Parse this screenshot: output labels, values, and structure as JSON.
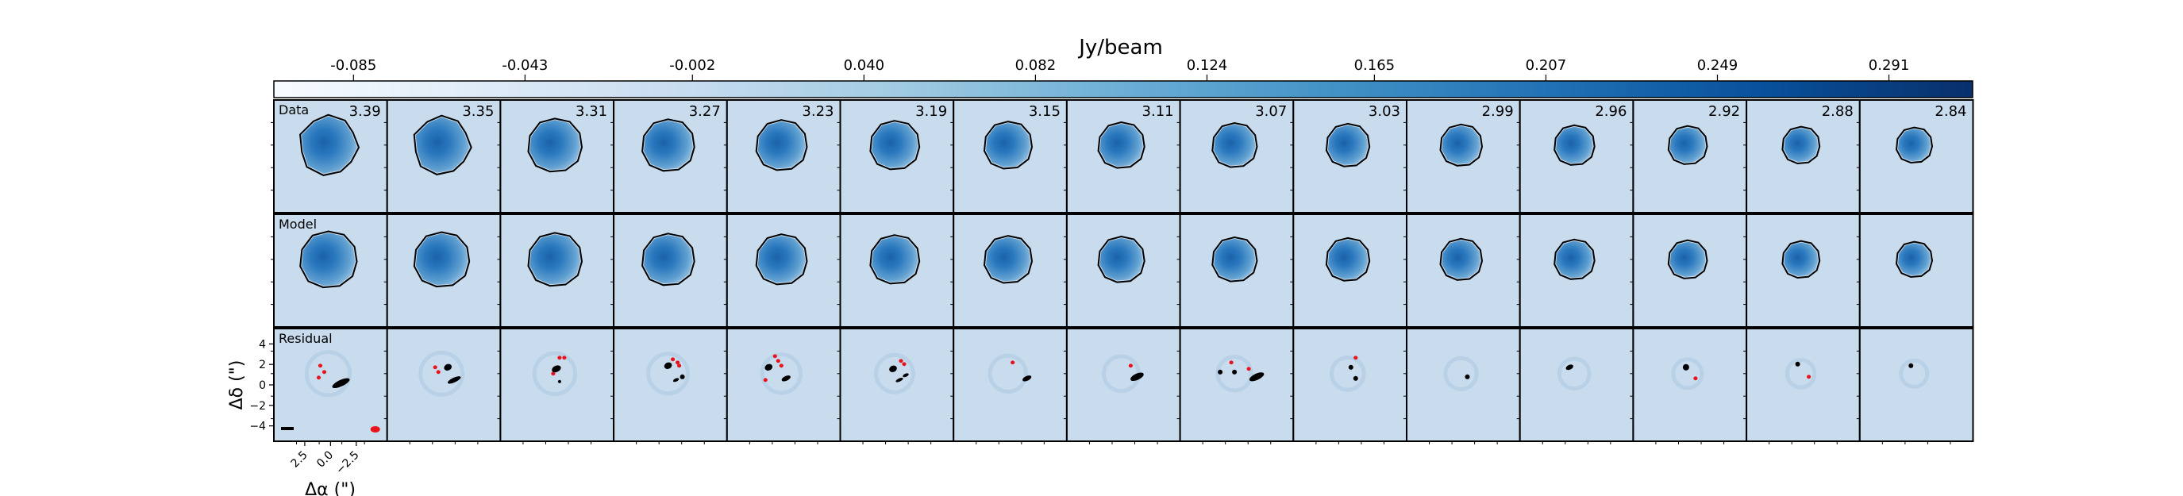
{
  "chart_data": {
    "type": "heatmap",
    "title": "",
    "colorbar": {
      "label": "Jy/beam",
      "ticks": [
        "-0.085",
        "-0.043",
        "-0.002",
        "0.040",
        "0.082",
        "0.124",
        "0.165",
        "0.207",
        "0.249",
        "0.291"
      ],
      "tick_values": [
        -0.085,
        -0.043,
        -0.002,
        0.04,
        0.082,
        0.124,
        0.165,
        0.207,
        0.249,
        0.291
      ],
      "range": [
        -0.1045,
        0.3115
      ],
      "colormap": "Blues",
      "placement": "top"
    },
    "rows": [
      "Data",
      "Model",
      "Residual"
    ],
    "channels": [
      "3.39",
      "3.35",
      "3.31",
      "3.27",
      "3.23",
      "3.19",
      "3.15",
      "3.11",
      "3.07",
      "3.03",
      "2.99",
      "2.96",
      "2.92",
      "2.88",
      "2.84"
    ],
    "xlabel": "Δα (\")",
    "ylabel": "Δδ (\")",
    "xticks": [
      "2.5",
      "0.0",
      "−2.5"
    ],
    "xtick_values": [
      2.5,
      0.0,
      -2.5
    ],
    "yticks": [
      "4",
      "2",
      "0",
      "−2",
      "−4"
    ],
    "ytick_values": [
      4,
      2,
      0,
      -2,
      -4
    ],
    "xlim": [
      5.5,
      -5.5
    ],
    "ylim": [
      -5.5,
      5.5
    ],
    "residual_colors": {
      "positive": "#e8141c",
      "negative": "#000000"
    },
    "background_value_color": "#c9dcee"
  }
}
